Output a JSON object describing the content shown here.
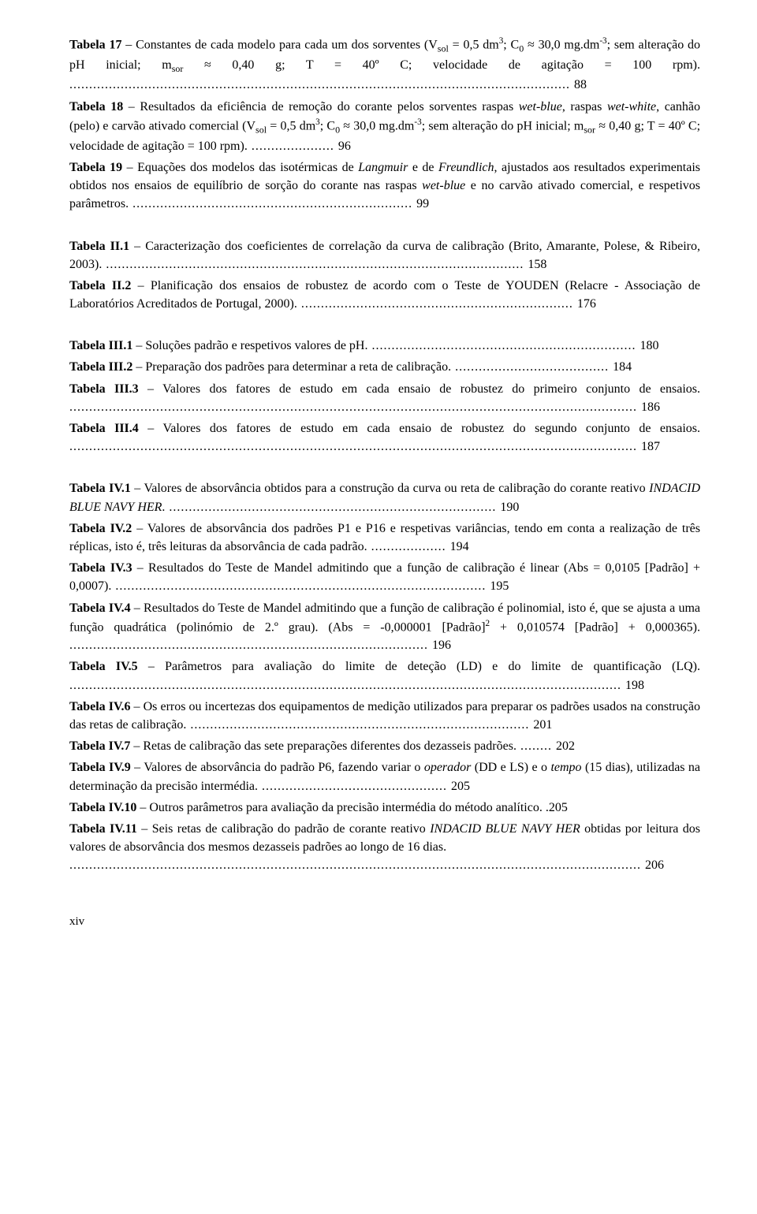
{
  "entries": [
    {
      "label": "Tabela 17",
      "sep": " – ",
      "before_italic": "Constantes de cada modelo para cada um dos sorventes  (V",
      "sub1": "sol",
      "after_sub1": " = 0,5 dm",
      "sup1": "3",
      "after_sup1": "; C",
      "sub2": "0",
      "after_sub2": " ≈ 30,0 mg.dm",
      "sup2": "-3",
      "after_sup2": "; sem alteração do pH inicial; m",
      "sub3": "sor",
      "after_sub3": " ≈ 0,40 g; T = 40º C; velocidade de agitação = 100 rpm).",
      "page": "88"
    },
    {
      "label": "Tabela 18",
      "sep": " – ",
      "text_a": "Resultados da eficiência de remoção do corante pelos sorventes raspas ",
      "italic_a": "wet-blue",
      "text_b": ", raspas ",
      "italic_b": "wet-white",
      "text_c": ", canhão (pelo) e carvão ativado comercial (V",
      "sub1": "sol",
      "after_sub1": " = 0,5 dm",
      "sup1": "3",
      "after_sup1": "; C",
      "sub2": "0",
      "after_sub2": " ≈ 30,0 mg.dm",
      "sup2": "-3",
      "after_sup2": "; sem alteração do pH inicial; m",
      "sub3": "sor",
      "after_sub3": " ≈ 0,40 g; T = 40º C; velocidade de agitação = 100 rpm).",
      "page": "96"
    },
    {
      "label": "Tabela 19",
      "sep": " – ",
      "text_a": "Equações dos modelos das isotérmicas de ",
      "italic_a": "Langmuir",
      "text_b": " e de ",
      "italic_b": "Freundlich",
      "text_c": ", ajustados aos resultados experimentais obtidos nos ensaios de equilíbrio de sorção do corante nas raspas ",
      "italic_c": "wet-blue",
      "text_d": " e no carvão ativado comercial, e respetivos parâmetros.",
      "page": "99"
    },
    {
      "label": "Tabela II.1",
      "sep": " – ",
      "text": "Caracterização dos coeficientes de correlação da curva de calibração (Brito, Amarante, Polese, & Ribeiro, 2003).",
      "page": "158"
    },
    {
      "label": "Tabela II.2",
      "sep": " – ",
      "text": "Planificação dos ensaios de robustez de acordo com o Teste de YOUDEN (Relacre - Associação de Laboratórios Acreditados de Portugal, 2000).",
      "page": "176"
    },
    {
      "label": "Tabela III.1",
      "sep": " – ",
      "text": "Soluções padrão e respetivos valores de pH.",
      "page": "180"
    },
    {
      "label": "Tabela III.2",
      "sep": " – ",
      "text": "Preparação dos padrões para determinar a reta de calibração.",
      "page": "184"
    },
    {
      "label": "Tabela III.3",
      "sep": " – ",
      "text": "Valores dos fatores de estudo em cada ensaio de robustez do primeiro conjunto de ensaios.",
      "page": "186"
    },
    {
      "label": "Tabela III.4",
      "sep": " – ",
      "text": "Valores dos fatores de estudo em cada ensaio de robustez do segundo conjunto de ensaios.",
      "page": "187"
    },
    {
      "label": "Tabela IV.1",
      "sep": " – ",
      "text_a": "Valores de absorvância obtidos para a construção da curva ou reta de calibração do corante reativo ",
      "italic_a": "INDACID BLUE NAVY HER",
      "text_b": ".",
      "page": "190"
    },
    {
      "label": "Tabela IV.2",
      "sep": " – ",
      "text": "Valores de absorvância dos padrões P1 e P16 e respetivas variâncias, tendo em conta a realização de três réplicas, isto é, três leituras da absorvância de cada padrão.",
      "page": "194"
    },
    {
      "label": "Tabela IV.3",
      "sep": " – ",
      "text": "Resultados do Teste de Mandel admitindo que a função de calibração é linear (Abs = 0,0105 [Padrão] + 0,0007).",
      "page": "195"
    },
    {
      "label": "Tabela IV.4",
      "sep": " – ",
      "text_a": "Resultados do Teste de Mandel admitindo que a função de calibração é polinomial, isto é, que se ajusta a uma função quadrática (polinómio de 2.º grau). (Abs = -0,000001 [Padrão]",
      "sup1": "2",
      "text_b": " + 0,010574 [Padrão] + 0,000365).",
      "page": "196"
    },
    {
      "label": "Tabela IV.5",
      "sep": " – ",
      "text": "Parâmetros para avaliação do limite de deteção (LD) e do limite de quantificação (LQ).",
      "page": "198"
    },
    {
      "label": "Tabela IV.6",
      "sep": " – ",
      "text": "Os erros ou incertezas dos equipamentos de medição utilizados para preparar os padrões usados na construção das retas de calibração.",
      "page": "201"
    },
    {
      "label": "Tabela IV.7",
      "sep": " – ",
      "text": "Retas de calibração das sete preparações diferentes dos dezasseis padrões.",
      "page": "202"
    },
    {
      "label": "Tabela IV.9",
      "sep": " – ",
      "text_a": "Valores de absorvância do padrão P6, fazendo variar o ",
      "italic_a": "operador",
      "text_b": " (DD e LS) e o ",
      "italic_b": "tempo",
      "text_c": " (15 dias), utilizadas na determinação da precisão intermédia.",
      "page": "205"
    },
    {
      "label": "Tabela IV.10",
      "sep": " – ",
      "text": "Outros parâmetros para avaliação da precisão intermédia do método analítico. .",
      "page": "205"
    },
    {
      "label": "Tabela IV.11",
      "sep": " – ",
      "text_a": "Seis retas de calibração do padrão de corante reativo ",
      "italic_a": "INDACID BLUE NAVY HER",
      "text_b": " obtidas por leitura dos valores de absorvância dos mesmos dezasseis padrões ao longo de 16 dias.",
      "dots_only": true,
      "page": "206"
    }
  ],
  "footer_page": "xiv",
  "colors": {
    "text": "#000000",
    "background": "#ffffff"
  },
  "typography": {
    "font_family": "Times New Roman",
    "body_fontsize_pt": 12,
    "label_weight": "bold"
  }
}
